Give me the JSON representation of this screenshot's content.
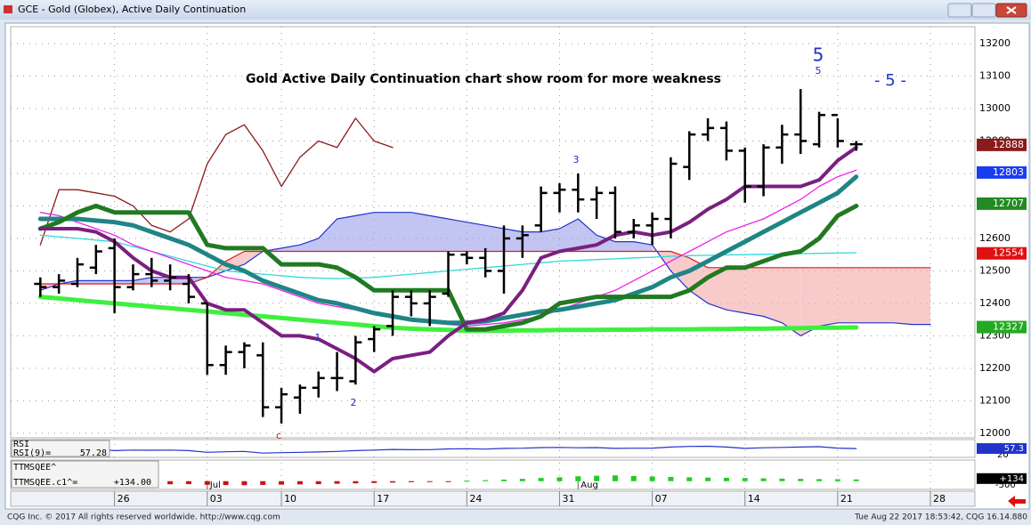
{
  "window": {
    "title": "GCE - Gold (Globex), Active Daily Continuation"
  },
  "footer": {
    "left": "CQG Inc. © 2017 All rights reserved worldwide. http://www.cqg.com",
    "right": "Tue Aug 22 2017 18:53:42, CQG 16.14.880"
  },
  "chart_data": {
    "type": "ohlc",
    "title": "Gold Active Daily Continuation chart show room for more weakness",
    "xlim": [
      -1.6,
      50.4
    ],
    "xticks": [
      {
        "value": 4,
        "label": "26"
      },
      {
        "value": 9,
        "label": "03"
      },
      {
        "value": 13,
        "label": "10"
      },
      {
        "value": 18,
        "label": "17"
      },
      {
        "value": 23,
        "label": "24"
      },
      {
        "value": 28,
        "label": "31"
      },
      {
        "value": 33,
        "label": "07"
      },
      {
        "value": 38,
        "label": "14"
      },
      {
        "value": 43,
        "label": "21"
      },
      {
        "value": 48,
        "label": "28"
      }
    ],
    "month_ticks": [
      {
        "value": 9,
        "label": "Jul"
      },
      {
        "value": 29,
        "label": "Aug"
      }
    ],
    "ylim": [
      11986,
      13252
    ],
    "yticks": [
      12000,
      12100,
      12200,
      12300,
      12400,
      12500,
      12600,
      12700,
      12800,
      12900,
      13000,
      13100,
      13200
    ],
    "grid": true,
    "bar_color": "#000000",
    "open": [
      12460,
      12450,
      12460,
      12510,
      12570,
      12450,
      12490,
      12470,
      12460,
      12400,
      12210,
      12250,
      12240,
      12080,
      12110,
      12140,
      12170,
      12160,
      12290,
      12330,
      12420,
      12400,
      12430,
      12550,
      12540,
      12500,
      12600,
      12640,
      12740,
      12750,
      12720,
      12740,
      12620,
      12640,
      12660,
      12820,
      12920,
      12940,
      12870,
      12760,
      12880,
      12920,
      12890,
      12980,
      12890
    ],
    "high": [
      12480,
      12490,
      12540,
      12580,
      12600,
      12520,
      12540,
      12520,
      12490,
      12400,
      12270,
      12280,
      12280,
      12140,
      12150,
      12190,
      12250,
      12300,
      12330,
      12440,
      12440,
      12440,
      12560,
      12560,
      12570,
      12640,
      12640,
      12760,
      12770,
      12800,
      12760,
      12760,
      12660,
      12680,
      12850,
      12930,
      12970,
      12960,
      12880,
      12890,
      12950,
      13060,
      12990,
      12970,
      12900
    ],
    "low": [
      12420,
      12430,
      12450,
      12490,
      12370,
      12440,
      12450,
      12440,
      12400,
      12180,
      12180,
      12200,
      12050,
      12030,
      12060,
      12110,
      12130,
      12150,
      12250,
      12300,
      12360,
      12330,
      12420,
      12520,
      12480,
      12430,
      12540,
      12620,
      12680,
      12680,
      12660,
      12600,
      12600,
      12580,
      12600,
      12780,
      12900,
      12840,
      12710,
      12730,
      12830,
      12860,
      12880,
      12880,
      12870
    ],
    "close": [
      12450,
      12470,
      12520,
      12560,
      12450,
      12490,
      12470,
      12480,
      12420,
      12210,
      12250,
      12270,
      12080,
      12120,
      12140,
      12170,
      12170,
      12280,
      12320,
      12420,
      12400,
      12420,
      12550,
      12540,
      12500,
      12600,
      12610,
      12740,
      12750,
      12720,
      12740,
      12620,
      12640,
      12660,
      12830,
      12920,
      12940,
      12870,
      12760,
      12880,
      12920,
      12900,
      12980,
      12900,
      12890
    ],
    "cloud": {
      "span_a": {
        "color": "#2233cc",
        "fill": "#8f95e6",
        "values": [
          12440,
          12460,
          12470,
          12470,
          12470,
          12470,
          12480,
          12480,
          12480,
          12480,
          12500,
          12520,
          12560,
          12570,
          12580,
          12600,
          12660,
          12670,
          12680,
          12680,
          12680,
          12670,
          12660,
          12650,
          12640,
          12630,
          12620,
          12620,
          12630,
          12660,
          12610,
          12590,
          12590,
          12580,
          12500,
          12440,
          12400,
          12380,
          12370,
          12360,
          12340,
          12300,
          12330,
          12340,
          12340,
          12340,
          12340,
          12335,
          12335
        ]
      },
      "span_b": {
        "color": "#e01818",
        "fill": "#f2a0a0",
        "values": [
          12460,
          12460,
          12460,
          12460,
          12460,
          12460,
          12460,
          12460,
          12460,
          12480,
          12530,
          12560,
          12560,
          12560,
          12560,
          12560,
          12560,
          12560,
          12560,
          12560,
          12560,
          12560,
          12560,
          12560,
          12560,
          12560,
          12560,
          12560,
          12560,
          12560,
          12560,
          12560,
          12560,
          12560,
          12560,
          12540,
          12510,
          12510,
          12510,
          12510,
          12510,
          12510,
          12510,
          12510,
          12510,
          12510,
          12510,
          12510,
          12510
        ]
      }
    },
    "lines": [
      {
        "color": "#8b1a1a",
        "width": 1.3,
        "values": [
          12580,
          12750,
          12750,
          12740,
          12730,
          12700,
          12640,
          12620,
          12660,
          12830,
          12920,
          12950,
          12870,
          12760,
          12850,
          12900,
          12880,
          12970,
          12900,
          12880,
          null,
          null,
          null,
          null,
          null,
          null,
          null,
          null,
          null,
          null,
          null,
          null,
          null,
          null,
          null,
          null,
          null,
          null,
          null,
          null,
          null,
          null,
          null,
          null,
          null
        ]
      },
      {
        "color": "#3ef03e",
        "width": 5,
        "values": [
          12420,
          12415,
          12410,
          12405,
          12400,
          12395,
          12390,
          12385,
          12380,
          12375,
          12370,
          12365,
          12360,
          12355,
          12350,
          12345,
          12340,
          12335,
          12330,
          12325,
          12322,
          12320,
          12318,
          12316,
          12316,
          12316,
          12317,
          12317,
          12318,
          12318,
          12318,
          12319,
          12319,
          12320,
          12320,
          12320,
          12321,
          12321,
          12322,
          12322,
          12323,
          12324,
          12325,
          12325,
          12326
        ]
      },
      {
        "color": "#30dada",
        "width": 1.3,
        "values": [
          12610,
          12605,
          12600,
          12595,
          12590,
          12575,
          12560,
          12545,
          12530,
          12515,
          12500,
          12495,
          12490,
          12485,
          12480,
          12478,
          12476,
          12478,
          12480,
          12485,
          12490,
          12495,
          12500,
          12505,
          12510,
          12515,
          12520,
          12525,
          12530,
          12532,
          12535,
          12537,
          12540,
          12542,
          12545,
          12547,
          12548,
          12549,
          12550,
          12551,
          12552,
          12553,
          12554,
          12555,
          12556
        ]
      },
      {
        "color": "#ee22ee",
        "width": 1.3,
        "values": [
          12680,
          12670,
          12650,
          12630,
          12610,
          12580,
          12560,
          12540,
          12520,
          12500,
          12480,
          12470,
          12460,
          12440,
          12420,
          12400,
          12390,
          12380,
          12370,
          12360,
          12350,
          12340,
          12335,
          12330,
          12335,
          12340,
          12350,
          12360,
          12380,
          12400,
          12420,
          12440,
          12470,
          12500,
          12530,
          12560,
          12590,
          12620,
          12640,
          12660,
          12690,
          12720,
          12760,
          12790,
          12810
        ]
      },
      {
        "color": "#1f8585",
        "width": 5,
        "values": [
          12660,
          12660,
          12660,
          12655,
          12650,
          12640,
          12620,
          12600,
          12580,
          12550,
          12520,
          12500,
          12470,
          12450,
          12430,
          12410,
          12400,
          12385,
          12370,
          12360,
          12350,
          12345,
          12340,
          12340,
          12345,
          12355,
          12365,
          12375,
          12380,
          12390,
          12400,
          12410,
          12430,
          12450,
          12480,
          12500,
          12530,
          12560,
          12590,
          12620,
          12650,
          12680,
          12710,
          12740,
          12790
        ]
      },
      {
        "color": "#217a21",
        "width": 5,
        "values": [
          12630,
          12650,
          12680,
          12700,
          12680,
          12680,
          12680,
          12680,
          12680,
          12580,
          12570,
          12570,
          12570,
          12520,
          12520,
          12520,
          12510,
          12480,
          12440,
          12440,
          12440,
          12440,
          12440,
          12320,
          12320,
          12330,
          12340,
          12360,
          12400,
          12410,
          12420,
          12420,
          12420,
          12420,
          12420,
          12440,
          12480,
          12510,
          12510,
          12530,
          12550,
          12560,
          12600,
          12670,
          12700
        ]
      },
      {
        "color": "#7a1f80",
        "width": 4,
        "values": [
          12630,
          12630,
          12630,
          12620,
          12590,
          12540,
          12500,
          12480,
          12480,
          12400,
          12380,
          12380,
          12340,
          12300,
          12300,
          12290,
          12260,
          12230,
          12190,
          12230,
          12240,
          12250,
          12300,
          12340,
          12350,
          12370,
          12440,
          12540,
          12560,
          12570,
          12580,
          12610,
          12620,
          12610,
          12620,
          12650,
          12690,
          12720,
          12760,
          12760,
          12760,
          12760,
          12780,
          12840,
          12880
        ]
      }
    ],
    "price_labels": [
      {
        "value": 12888,
        "color": "#8b1a1a"
      },
      {
        "value": 12803,
        "color": "#1a3cf0"
      },
      {
        "value": 12707,
        "color": "#228a22"
      },
      {
        "value": 12554,
        "color": "#e01010"
      },
      {
        "value": 12327,
        "color": "#22aa22"
      }
    ],
    "annotations": [
      {
        "text": "5",
        "color": "#2030c0"
      },
      {
        "text": "5",
        "color": "#2030c0"
      },
      {
        "text": "- 5 -",
        "color": "#2030c0"
      },
      {
        "text": "3",
        "color": "#2030c0"
      },
      {
        "text": "1",
        "color": "#2030c0"
      },
      {
        "text": "2",
        "color": "#2030c0"
      },
      {
        "text": "c",
        "color": "#d02020"
      }
    ]
  },
  "rsi_panel": {
    "label": "RSI",
    "readout_label": "RSI(9)=",
    "readout": 57.28,
    "ylim": [
      10,
      100
    ],
    "yticks": [
      20
    ],
    "last_label": 57.3,
    "color": "#2233cc",
    "values": [
      48,
      50,
      52,
      55,
      45,
      48,
      47,
      48,
      45,
      35,
      38,
      40,
      30,
      33,
      35,
      37,
      40,
      45,
      48,
      52,
      50,
      51,
      55,
      56,
      54,
      58,
      59,
      63,
      64,
      62,
      63,
      58,
      59,
      60,
      66,
      70,
      71,
      66,
      58,
      62,
      64,
      66,
      68,
      60,
      57
    ]
  },
  "ttm_panel": {
    "label": "TTMSQEE^",
    "readout_label": "TTMSQEE.c1^=",
    "readout": {
      "value": 134,
      "label": "+134.00"
    },
    "ylim": [
      -500,
      1500
    ],
    "yticks": [
      -500
    ],
    "last_label": {
      "value": 134,
      "label": "+134"
    },
    "pos_color": "#22cc22",
    "neg_color": "#cc1111",
    "values": [
      -120,
      -150,
      -180,
      -200,
      -220,
      -250,
      -260,
      -240,
      -230,
      -280,
      -300,
      -310,
      -290,
      -270,
      -250,
      -230,
      -200,
      -170,
      -140,
      -110,
      -80,
      -50,
      -20,
      40,
      80,
      120,
      180,
      250,
      300,
      380,
      420,
      450,
      400,
      360,
      330,
      300,
      280,
      260,
      240,
      220,
      200,
      180,
      160,
      150,
      134
    ]
  }
}
